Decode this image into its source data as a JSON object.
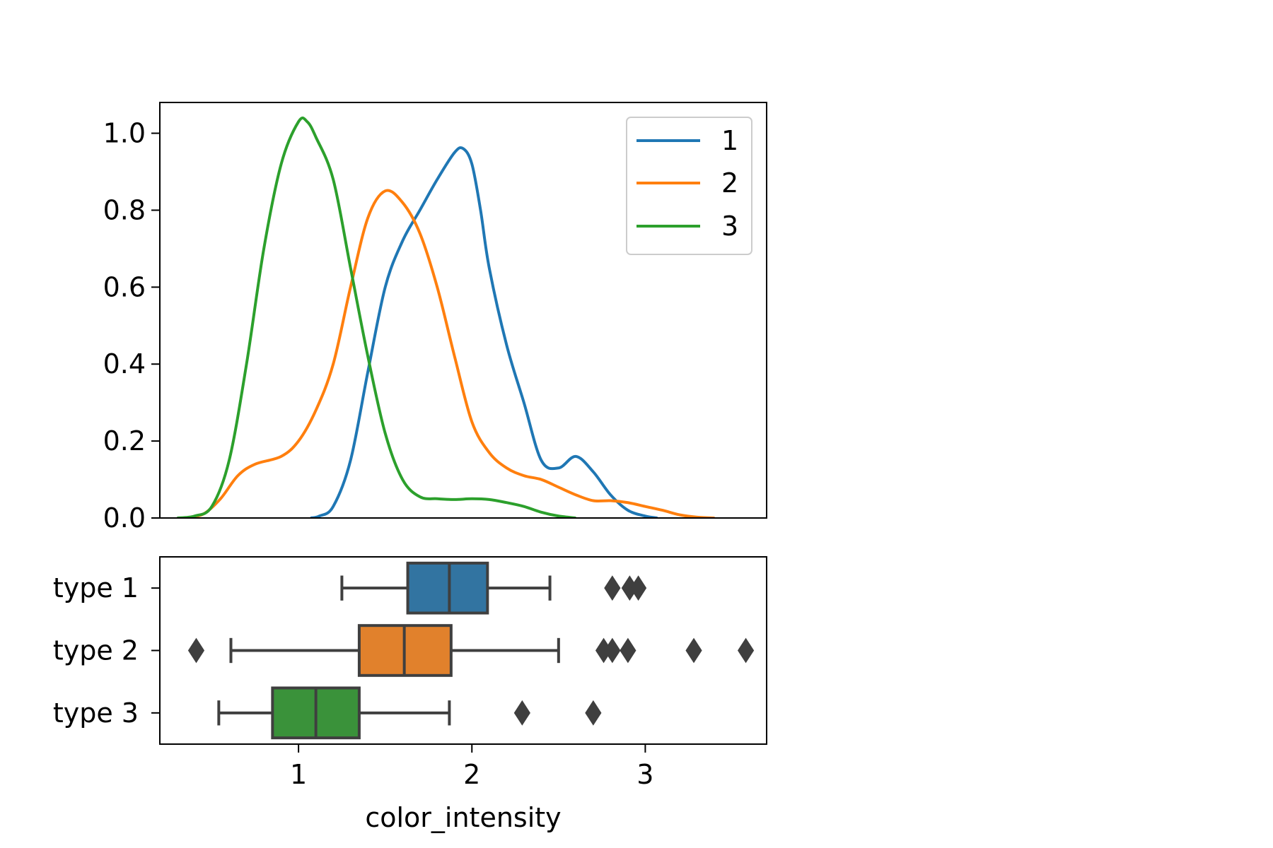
{
  "chart_data": [
    {
      "type": "line",
      "title": "",
      "xlabel": "",
      "ylabel": "",
      "xlim": [
        0.2,
        3.7
      ],
      "ylim": [
        0,
        1.08
      ],
      "yticks": [
        0.0,
        0.2,
        0.4,
        0.6,
        0.8,
        1.0
      ],
      "ytick_labels": [
        "0.0",
        "0.2",
        "0.4",
        "0.6",
        "0.8",
        "1.0"
      ],
      "legend": {
        "placement": "top-right",
        "entries": [
          "1",
          "2",
          "3"
        ]
      },
      "grid": false,
      "series": [
        {
          "name": "1",
          "color": "#1f77b4",
          "points": [
            [
              1.07,
              0.0
            ],
            [
              1.12,
              0.005
            ],
            [
              1.2,
              0.03
            ],
            [
              1.3,
              0.15
            ],
            [
              1.4,
              0.38
            ],
            [
              1.5,
              0.6
            ],
            [
              1.6,
              0.72
            ],
            [
              1.7,
              0.8
            ],
            [
              1.8,
              0.88
            ],
            [
              1.9,
              0.95
            ],
            [
              1.95,
              0.96
            ],
            [
              2.0,
              0.92
            ],
            [
              2.05,
              0.8
            ],
            [
              2.1,
              0.65
            ],
            [
              2.2,
              0.45
            ],
            [
              2.3,
              0.3
            ],
            [
              2.4,
              0.15
            ],
            [
              2.5,
              0.13
            ],
            [
              2.6,
              0.16
            ],
            [
              2.7,
              0.12
            ],
            [
              2.8,
              0.06
            ],
            [
              2.9,
              0.02
            ],
            [
              3.0,
              0.005
            ],
            [
              3.07,
              0.0
            ]
          ]
        },
        {
          "name": "2",
          "color": "#ff7f0e",
          "points": [
            [
              0.35,
              0.0
            ],
            [
              0.45,
              0.01
            ],
            [
              0.55,
              0.05
            ],
            [
              0.65,
              0.11
            ],
            [
              0.75,
              0.14
            ],
            [
              0.9,
              0.16
            ],
            [
              1.0,
              0.2
            ],
            [
              1.1,
              0.28
            ],
            [
              1.2,
              0.4
            ],
            [
              1.3,
              0.6
            ],
            [
              1.4,
              0.78
            ],
            [
              1.5,
              0.85
            ],
            [
              1.6,
              0.82
            ],
            [
              1.7,
              0.74
            ],
            [
              1.8,
              0.6
            ],
            [
              1.9,
              0.42
            ],
            [
              2.0,
              0.25
            ],
            [
              2.1,
              0.17
            ],
            [
              2.2,
              0.13
            ],
            [
              2.3,
              0.11
            ],
            [
              2.4,
              0.1
            ],
            [
              2.5,
              0.08
            ],
            [
              2.6,
              0.06
            ],
            [
              2.7,
              0.045
            ],
            [
              2.8,
              0.045
            ],
            [
              2.9,
              0.04
            ],
            [
              3.0,
              0.03
            ],
            [
              3.1,
              0.02
            ],
            [
              3.2,
              0.008
            ],
            [
              3.3,
              0.002
            ],
            [
              3.4,
              0.0
            ]
          ]
        },
        {
          "name": "3",
          "color": "#2ca02c",
          "points": [
            [
              0.3,
              0.0
            ],
            [
              0.4,
              0.005
            ],
            [
              0.5,
              0.03
            ],
            [
              0.6,
              0.15
            ],
            [
              0.7,
              0.4
            ],
            [
              0.8,
              0.7
            ],
            [
              0.9,
              0.92
            ],
            [
              1.0,
              1.03
            ],
            [
              1.05,
              1.03
            ],
            [
              1.1,
              0.99
            ],
            [
              1.2,
              0.88
            ],
            [
              1.3,
              0.65
            ],
            [
              1.4,
              0.42
            ],
            [
              1.5,
              0.22
            ],
            [
              1.6,
              0.1
            ],
            [
              1.7,
              0.055
            ],
            [
              1.8,
              0.05
            ],
            [
              1.9,
              0.048
            ],
            [
              2.0,
              0.05
            ],
            [
              2.1,
              0.048
            ],
            [
              2.2,
              0.04
            ],
            [
              2.3,
              0.03
            ],
            [
              2.4,
              0.015
            ],
            [
              2.5,
              0.005
            ],
            [
              2.6,
              0.0
            ]
          ]
        }
      ]
    },
    {
      "type": "box",
      "orientation": "horizontal",
      "xlabel": "color_intensity",
      "ylabel": "",
      "xlim": [
        0.2,
        3.7
      ],
      "xticks": [
        1,
        2,
        3
      ],
      "xtick_labels": [
        "1",
        "2",
        "3"
      ],
      "grid": false,
      "categories": [
        "type 1",
        "type 2",
        "type 3"
      ],
      "boxes": [
        {
          "name": "type 1",
          "color": "#3274a1",
          "whisker_low": 1.25,
          "q1": 1.63,
          "median": 1.87,
          "q3": 2.09,
          "whisker_high": 2.45,
          "outliers": [
            2.81,
            2.91,
            2.96
          ]
        },
        {
          "name": "type 2",
          "color": "#e1812c",
          "whisker_low": 0.61,
          "q1": 1.35,
          "median": 1.61,
          "q3": 1.88,
          "whisker_high": 2.5,
          "outliers": [
            0.41,
            2.76,
            2.81,
            2.9,
            3.28,
            3.58
          ]
        },
        {
          "name": "type 3",
          "color": "#3a923a",
          "whisker_low": 0.54,
          "q1": 0.85,
          "median": 1.1,
          "q3": 1.35,
          "whisker_high": 1.87,
          "outliers": [
            2.29,
            2.7
          ]
        }
      ]
    }
  ]
}
